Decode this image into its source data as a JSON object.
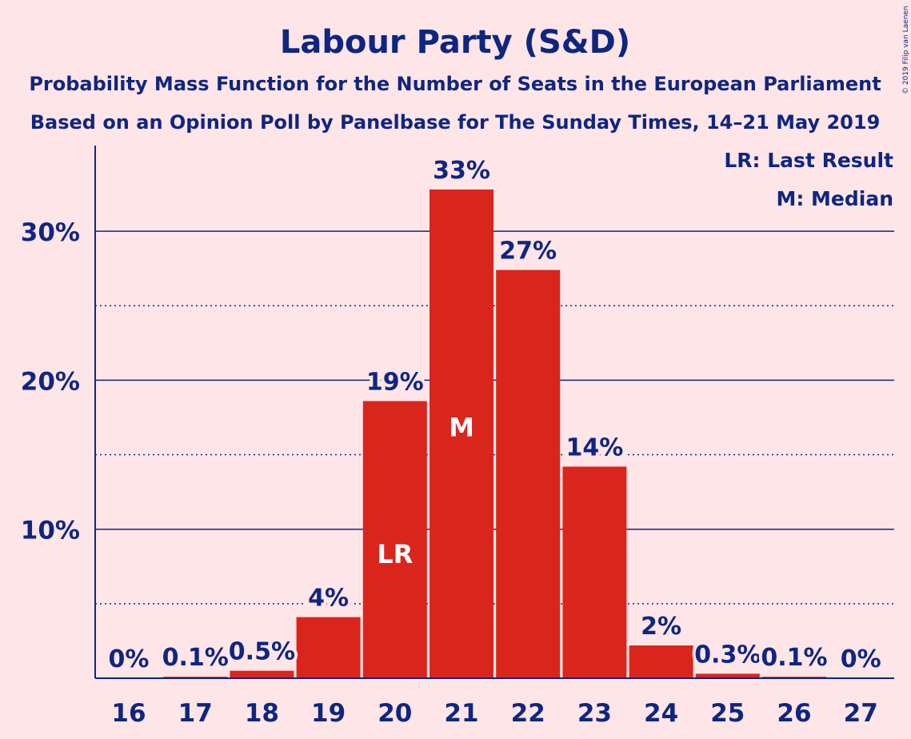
{
  "chart_data": {
    "type": "bar",
    "title": "Labour Party (S&D)",
    "subtitle_1": "Probability Mass Function for the Number of Seats in the European Parliament",
    "subtitle_2": "Based on an Opinion Poll by Panelbase for The Sunday Times, 14–21 May 2019",
    "categories": [
      "16",
      "17",
      "18",
      "19",
      "20",
      "21",
      "22",
      "23",
      "24",
      "25",
      "26",
      "27"
    ],
    "values": [
      0,
      0.1,
      0.5,
      4.1,
      18.6,
      32.8,
      27.4,
      14.2,
      2.2,
      0.3,
      0.1,
      0
    ],
    "data_labels": [
      "0%",
      "0.1%",
      "0.5%",
      "4%",
      "19%",
      "33%",
      "27%",
      "14%",
      "2%",
      "0.3%",
      "0.1%",
      "0%"
    ],
    "ylim": [
      0,
      35
    ],
    "y_ticks": [
      {
        "value": 10,
        "label": "10%"
      },
      {
        "value": 20,
        "label": "20%"
      },
      {
        "value": 30,
        "label": "30%"
      }
    ],
    "dotted_gridlines": [
      5,
      15,
      25
    ],
    "xlabel": "",
    "ylabel": "",
    "markers": [
      {
        "category": "20",
        "text": "LR"
      },
      {
        "category": "21",
        "text": "M"
      }
    ],
    "legend": [
      "LR: Last Result",
      "M: Median"
    ],
    "legend_position": "top-right",
    "copyright": "© 2019 Filip van Laenen",
    "colors": {
      "background": "#fde5e8",
      "bar": "#da251d",
      "text": "#0f2680",
      "grid": "#0f2680"
    }
  }
}
